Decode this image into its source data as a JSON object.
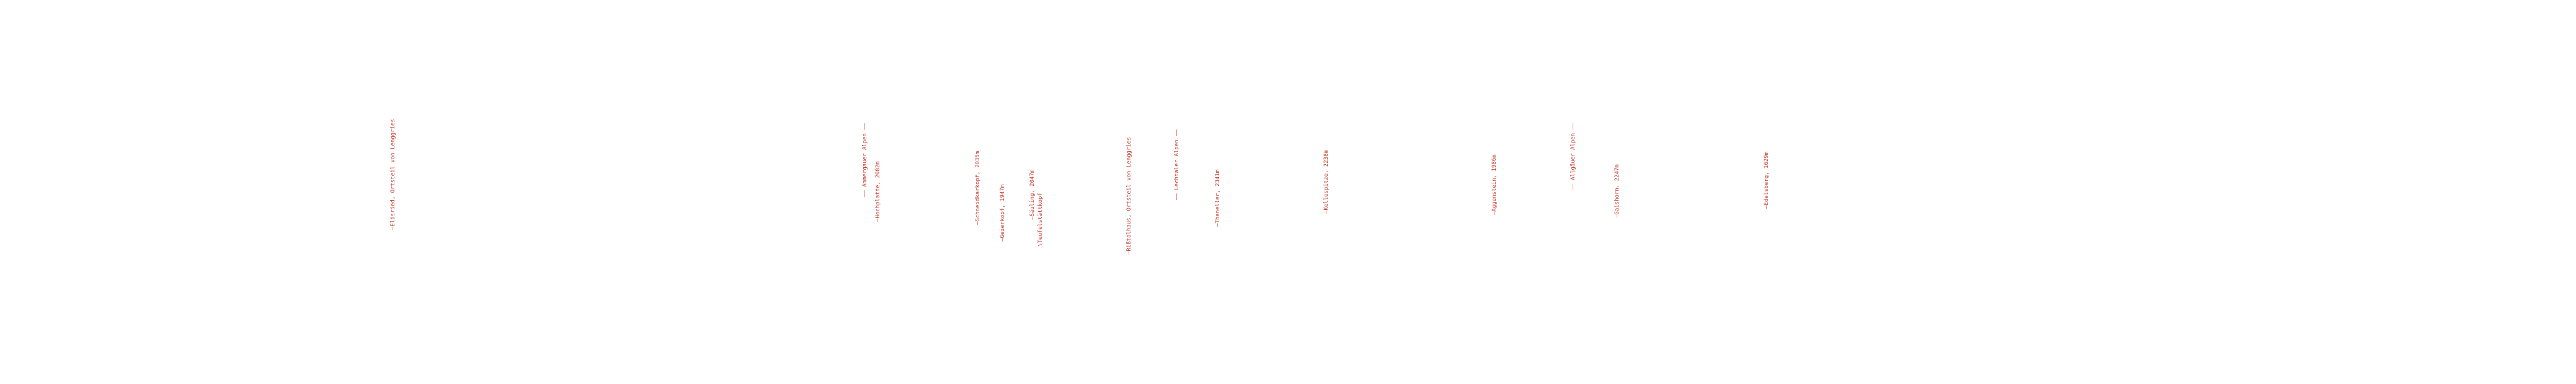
{
  "labels": [
    "—Elisried, Ortsteil von Lenggries",
    "—— Ammergauer Alpen ——",
    "—Hochplatte, 2082m",
    "—Schneidkarkopf, 2035m",
    "—Geierkopf, 1947m",
    "—Säuling, 2047m",
    "\\Teufelstättkopf",
    "—Rißtalhaus, Ortsteil von Lenggries",
    "—— Lechtaler Alpen ——",
    "—Thaneller, 2341m",
    "—Kellespitze, 2238m",
    "—Aggenstein, 1986m",
    "—— Allgäuer Alpen ——",
    "—Gaishorn, 2247m",
    "—Edelsberg, 1629m"
  ]
}
